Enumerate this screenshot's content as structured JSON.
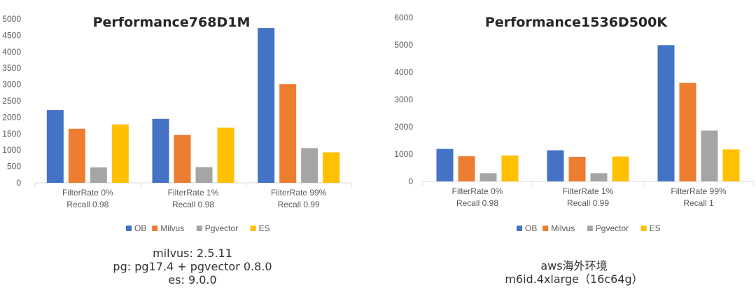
{
  "colors": {
    "OB": "#4472C4",
    "Milvus": "#ED7D31",
    "Pgvector": "#A5A5A5",
    "ES": "#FFC000"
  },
  "chart_data": [
    {
      "type": "bar",
      "title": "Performance768D1M",
      "categories": [
        [
          "FilterRate 0%",
          "Recall 0.98"
        ],
        [
          "FilterRate 1%",
          "Recall 0.98"
        ],
        [
          "FilterRate 99%",
          "Recall 0.99"
        ]
      ],
      "series": [
        {
          "name": "OB",
          "values": [
            2220,
            1950,
            4720
          ]
        },
        {
          "name": "Milvus",
          "values": [
            1650,
            1460,
            3010
          ]
        },
        {
          "name": "Pgvector",
          "values": [
            470,
            480,
            1060
          ]
        },
        {
          "name": "ES",
          "values": [
            1780,
            1680,
            930
          ]
        }
      ],
      "ylim": [
        0,
        5000
      ],
      "yticks": [
        0,
        500,
        1000,
        1500,
        2000,
        2500,
        3000,
        3500,
        4000,
        4500,
        5000
      ],
      "ytick_labels": [
        "0",
        "500",
        "1000",
        "1500",
        "2000",
        "2500",
        "3000",
        "3500",
        "4000",
        "4500",
        "5000"
      ],
      "legend_position": "bottom",
      "grid": false
    },
    {
      "type": "bar",
      "title": "Performance1536D500K",
      "categories": [
        [
          "FilterRate 0%",
          "Recall 0.98"
        ],
        [
          "FilterRate 1%",
          "Recall 0.99"
        ],
        [
          "FilterRate 99%",
          "Recall 1"
        ]
      ],
      "series": [
        {
          "name": "OB",
          "values": [
            1190,
            1140,
            4990
          ]
        },
        {
          "name": "Milvus",
          "values": [
            920,
            900,
            3610
          ]
        },
        {
          "name": "Pgvector",
          "values": [
            300,
            300,
            1860
          ]
        },
        {
          "name": "ES",
          "values": [
            950,
            910,
            1170
          ]
        }
      ],
      "ylim": [
        0,
        6000
      ],
      "yticks": [
        0,
        1000,
        2000,
        3000,
        4000,
        5000,
        6000
      ],
      "ytick_labels": [
        "0",
        "1000",
        "2000",
        "3000",
        "4000",
        "5000",
        "6000"
      ],
      "legend_position": "bottom",
      "grid": false
    }
  ],
  "notes": {
    "left": [
      "milvus: 2.5.11",
      "pg: pg17.4 + pgvector 0.8.0",
      "es: 9.0.0"
    ],
    "right": [
      "aws海外环境",
      "m6id.4xlarge（16c64g）"
    ]
  }
}
